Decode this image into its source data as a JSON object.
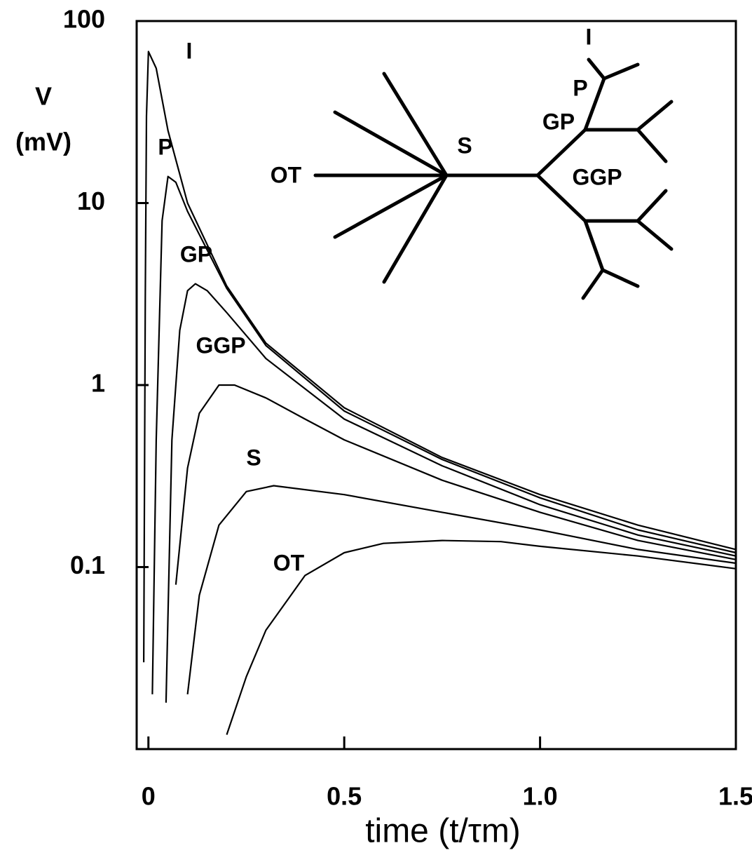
{
  "chart_data": {
    "type": "line",
    "x_label": "time (t/τm)",
    "y_label": [
      "V",
      "(mV)"
    ],
    "yscale": "log",
    "xlim": [
      -0.03,
      1.5
    ],
    "ylim": [
      0.01,
      100
    ],
    "xticks": [
      0,
      0.5,
      {
        "value": 1,
        "label": "1.0"
      },
      1.5
    ],
    "yticks": [
      100,
      10,
      1,
      0.1
    ],
    "series": [
      {
        "name": "I",
        "color": "#000000",
        "x": [
          -0.012,
          -0.008,
          -0.005,
          0,
          0.02,
          0.05,
          0.1,
          0.2,
          0.3,
          0.5,
          0.75,
          1.0,
          1.25,
          1.5
        ],
        "values": [
          0.03,
          3,
          30,
          68,
          55,
          25,
          10,
          3.5,
          1.7,
          0.75,
          0.4,
          0.25,
          0.17,
          0.125
        ]
      },
      {
        "name": "P",
        "color": "#000000",
        "x": [
          0.01,
          0.02,
          0.035,
          0.05,
          0.07,
          0.1,
          0.2,
          0.3,
          0.5,
          0.75,
          1.0,
          1.25,
          1.5
        ],
        "values": [
          0.02,
          0.5,
          8,
          14,
          13,
          9,
          3.4,
          1.65,
          0.72,
          0.39,
          0.24,
          0.16,
          0.12
        ]
      },
      {
        "name": "GP",
        "color": "#000000",
        "x": [
          0.045,
          0.06,
          0.08,
          0.1,
          0.12,
          0.15,
          0.2,
          0.3,
          0.5,
          0.75,
          1.0,
          1.25,
          1.5
        ],
        "values": [
          0.018,
          0.5,
          2,
          3.3,
          3.6,
          3.3,
          2.5,
          1.4,
          0.65,
          0.36,
          0.22,
          0.15,
          0.115
        ]
      },
      {
        "name": "GGP",
        "color": "#000000",
        "x": [
          0.07,
          0.1,
          0.13,
          0.18,
          0.22,
          0.3,
          0.4,
          0.5,
          0.75,
          1.0,
          1.25,
          1.5
        ],
        "values": [
          0.08,
          0.35,
          0.7,
          1.0,
          1.0,
          0.85,
          0.65,
          0.5,
          0.3,
          0.2,
          0.14,
          0.11
        ]
      },
      {
        "name": "S",
        "color": "#000000",
        "x": [
          0.1,
          0.13,
          0.18,
          0.25,
          0.32,
          0.5,
          0.75,
          1.0,
          1.25,
          1.5
        ],
        "values": [
          0.02,
          0.07,
          0.17,
          0.26,
          0.28,
          0.25,
          0.2,
          0.16,
          0.125,
          0.105
        ]
      },
      {
        "name": "OT",
        "color": "#000000",
        "x": [
          0.2,
          0.25,
          0.3,
          0.4,
          0.5,
          0.6,
          0.75,
          0.9,
          1.0,
          1.25,
          1.5
        ],
        "values": [
          0.012,
          0.025,
          0.045,
          0.09,
          0.12,
          0.135,
          0.14,
          0.138,
          0.13,
          0.115,
          0.098
        ]
      }
    ],
    "inset_labels": [
      "I",
      "P",
      "GP",
      "GGP",
      "S",
      "OT"
    ]
  }
}
